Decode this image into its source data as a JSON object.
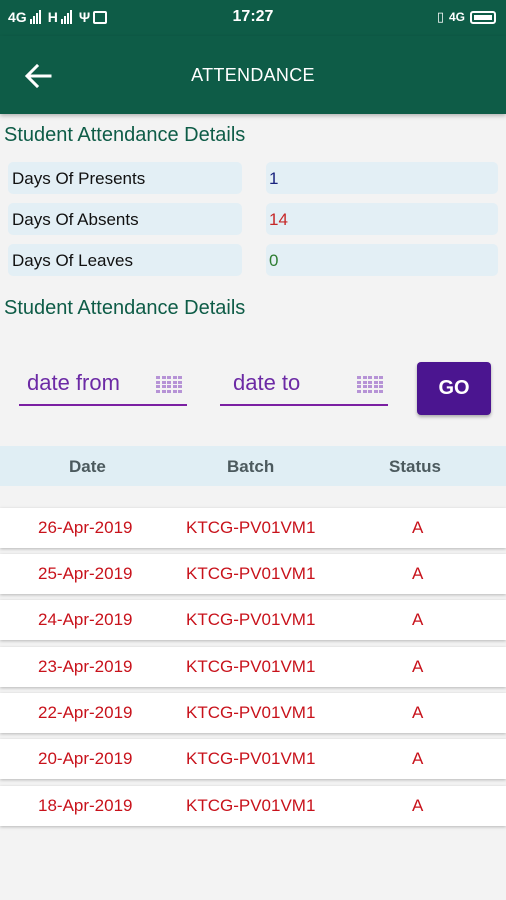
{
  "status_bar": {
    "network_1": "4G",
    "network_2": "H",
    "time": "17:27",
    "right_label": "4G"
  },
  "app_bar": {
    "title": "ATTENDANCE",
    "back_icon": "arrow-left-icon"
  },
  "summary": {
    "title": "Student Attendance Details",
    "items": [
      {
        "label": "Days Of Presents",
        "value": "1",
        "color": "#1a237e"
      },
      {
        "label": "Days Of Absents",
        "value": "14",
        "color": "#c62828"
      },
      {
        "label": "Days Of Leaves",
        "value": "0",
        "color": "#2e7d32"
      }
    ]
  },
  "details": {
    "title": "Student Attendance Details",
    "date_from_placeholder": "date from",
    "date_to_placeholder": "date to",
    "calendar_icon": "calendar-grid-icon",
    "go_label": "GO"
  },
  "table": {
    "columns": [
      "Date",
      "Batch",
      "Status"
    ],
    "rows": [
      {
        "date": "26-Apr-2019",
        "batch": "KTCG-PV01VM1",
        "status": "A"
      },
      {
        "date": "25-Apr-2019",
        "batch": "KTCG-PV01VM1",
        "status": "A"
      },
      {
        "date": "24-Apr-2019",
        "batch": "KTCG-PV01VM1",
        "status": "A"
      },
      {
        "date": "23-Apr-2019",
        "batch": "KTCG-PV01VM1",
        "status": "A"
      },
      {
        "date": "22-Apr-2019",
        "batch": "KTCG-PV01VM1",
        "status": "A"
      },
      {
        "date": "20-Apr-2019",
        "batch": "KTCG-PV01VM1",
        "status": "A"
      },
      {
        "date": "18-Apr-2019",
        "batch": "KTCG-PV01VM1",
        "status": "A"
      }
    ]
  },
  "colors": {
    "primary": "#0e5c47",
    "accent": "#4b1590",
    "row_text": "#c8121b"
  }
}
